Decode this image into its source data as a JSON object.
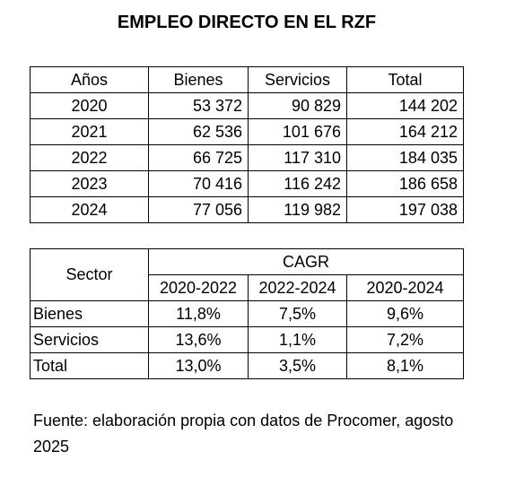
{
  "header": {
    "title": "EMPLEO DIRECTO EN EL RZF"
  },
  "employment_table": {
    "columns": [
      "Años",
      "Bienes",
      "Servicios",
      "Total"
    ],
    "rows": [
      [
        "2020",
        "53 372",
        "90 829",
        "144 202"
      ],
      [
        "2021",
        "62 536",
        "101 676",
        "164 212"
      ],
      [
        "2022",
        "66 725",
        "117 310",
        "184 035"
      ],
      [
        "2023",
        "70 416",
        "116 242",
        "186 658"
      ],
      [
        "2024",
        "77 056",
        "119 982",
        "197 038"
      ]
    ]
  },
  "cagr_table": {
    "sector_header": "Sector",
    "group_header": "CAGR",
    "periods": [
      "2020-2022",
      "2022-2024",
      "2020-2024"
    ],
    "rows": [
      [
        "Bienes",
        "11,8%",
        "7,5%",
        "9,6%"
      ],
      [
        "Servicios",
        "13,6%",
        "1,1%",
        "7,2%"
      ],
      [
        "Total",
        "13,0%",
        "3,5%",
        "8,1%"
      ]
    ]
  },
  "footer": {
    "source": "Fuente: elaboración propia con datos de Procomer, agosto 2025"
  }
}
